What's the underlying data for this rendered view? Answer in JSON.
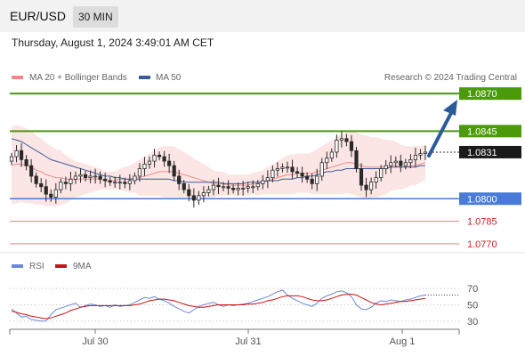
{
  "header": {
    "symbol": "EUR/USD",
    "timeframe": "30 MIN"
  },
  "datetime": "Thursday, August 1, 2024 3:49:01 AM CET",
  "legend": {
    "ma20": {
      "label": "MA 20 + Bollinger Bands",
      "color": "#f08a8a"
    },
    "ma50": {
      "label": "MA 50",
      "color": "#3a5a9a"
    }
  },
  "credit": "Research © 2024 Trading Central",
  "rsi_legend": {
    "rsi": {
      "label": "RSI",
      "color": "#6a8ad8"
    },
    "ma9": {
      "label": "9MA",
      "color": "#cc1111"
    }
  },
  "colors": {
    "resistance": "#4a9a0a",
    "support_main": "#4a7ad8",
    "support": "#e88080",
    "last": "#1a1a1a",
    "up": "#2a2a2a",
    "down": "#2a2a2a",
    "arrow": "#2a5a9a"
  },
  "chart_data": [
    {
      "type": "candlestick",
      "y_range": [
        1.0764,
        1.0876
      ],
      "x_labels": [
        "Jul 30",
        "Jul 31",
        "Aug 1"
      ],
      "levels": [
        {
          "value": 1.087,
          "label": "1.0870",
          "kind": "resistance"
        },
        {
          "value": 1.0845,
          "label": "1.0845",
          "kind": "resistance"
        },
        {
          "value": 1.0831,
          "label": "1.0831",
          "kind": "last"
        },
        {
          "value": 1.08,
          "label": "1.0800",
          "kind": "support_main"
        },
        {
          "value": 1.0785,
          "label": "1.0785",
          "kind": "support"
        },
        {
          "value": 1.077,
          "label": "1.0770",
          "kind": "support"
        }
      ],
      "closes": [
        1.0828,
        1.0832,
        1.0826,
        1.0822,
        1.0815,
        1.081,
        1.0808,
        1.0803,
        1.0801,
        1.0806,
        1.0811,
        1.081,
        1.0813,
        1.0815,
        1.0816,
        1.0814,
        1.0815,
        1.0815,
        1.0813,
        1.0812,
        1.0811,
        1.0811,
        1.0811,
        1.081,
        1.0812,
        1.0815,
        1.082,
        1.0823,
        1.0825,
        1.0829,
        1.0828,
        1.0825,
        1.0822,
        1.0815,
        1.081,
        1.0806,
        1.0802,
        1.0799,
        1.0802,
        1.0804,
        1.0806,
        1.0809,
        1.0808,
        1.0808,
        1.0807,
        1.0806,
        1.0807,
        1.0807,
        1.0808,
        1.0808,
        1.081,
        1.0812,
        1.0814,
        1.0819,
        1.082,
        1.0821,
        1.0821,
        1.0818,
        1.0817,
        1.0815,
        1.0813,
        1.081,
        1.0815,
        1.0824,
        1.0827,
        1.0831,
        1.0839,
        1.084,
        1.0838,
        1.0832,
        1.082,
        1.0809,
        1.0806,
        1.0811,
        1.0814,
        1.082,
        1.0822,
        1.0824,
        1.0825,
        1.0822,
        1.0824,
        1.0826,
        1.0829,
        1.083,
        1.0831
      ],
      "ma20": [
        1.0822,
        1.0823,
        1.0823,
        1.0822,
        1.0821,
        1.0819,
        1.0818,
        1.0816,
        1.0815,
        1.0814,
        1.0814,
        1.0813,
        1.0813,
        1.0813,
        1.0813,
        1.0813,
        1.0813,
        1.0813,
        1.0813,
        1.0812,
        1.0812,
        1.0812,
        1.0813,
        1.0813,
        1.0813,
        1.0814,
        1.0814,
        1.0815,
        1.0816,
        1.0817,
        1.0818,
        1.0818,
        1.0818,
        1.0818,
        1.0817,
        1.0816,
        1.0815,
        1.0814,
        1.0813,
        1.0812,
        1.0811,
        1.081,
        1.081,
        1.081,
        1.0809,
        1.0809,
        1.0809,
        1.0809,
        1.0809,
        1.081,
        1.081,
        1.0811,
        1.0812,
        1.0813,
        1.0814,
        1.0815,
        1.0816,
        1.0816,
        1.0817,
        1.0817,
        1.0817,
        1.0817,
        1.0818,
        1.0819,
        1.082,
        1.0821,
        1.0822,
        1.0823,
        1.0824,
        1.0824,
        1.0823,
        1.0822,
        1.0821,
        1.0821,
        1.0821,
        1.0821,
        1.0821,
        1.0822,
        1.0822,
        1.0821,
        1.0821,
        1.0822,
        1.0822,
        1.0823,
        1.0824
      ],
      "ma50": [
        1.084,
        1.0839,
        1.0838,
        1.0836,
        1.0834,
        1.0832,
        1.083,
        1.0828,
        1.0826,
        1.0825,
        1.0824,
        1.0823,
        1.0822,
        1.0821,
        1.082,
        1.0819,
        1.0818,
        1.0817,
        1.0816,
        1.0815,
        1.0815,
        1.0814,
        1.0814,
        1.0813,
        1.0813,
        1.0813,
        1.0813,
        1.0813,
        1.0813,
        1.0813,
        1.0813,
        1.0813,
        1.0813,
        1.0812,
        1.0812,
        1.0811,
        1.0811,
        1.0811,
        1.0811,
        1.0811,
        1.0811,
        1.0811,
        1.0811,
        1.081,
        1.081,
        1.081,
        1.081,
        1.081,
        1.0811,
        1.0811,
        1.0811,
        1.0811,
        1.0812,
        1.0812,
        1.0812,
        1.0813,
        1.0813,
        1.0813,
        1.0814,
        1.0814,
        1.0815,
        1.0815,
        1.0816,
        1.0817,
        1.0818,
        1.0818,
        1.0819,
        1.0819,
        1.082,
        1.082,
        1.082,
        1.082,
        1.082,
        1.082,
        1.082,
        1.082,
        1.082,
        1.0821,
        1.0821,
        1.0821,
        1.0821,
        1.0821,
        1.0821,
        1.0822,
        1.0822
      ],
      "bb_half_width": [
        0.0026,
        0.0026,
        0.0025,
        0.0025,
        0.0024,
        0.0023,
        0.0022,
        0.0021,
        0.002,
        0.0019,
        0.0018,
        0.0016,
        0.0014,
        0.0012,
        0.0011,
        0.001,
        0.0009,
        0.0008,
        0.0007,
        0.0006,
        0.0006,
        0.0006,
        0.0007,
        0.0008,
        0.0009,
        0.001,
        0.0012,
        0.0013,
        0.0014,
        0.0015,
        0.0016,
        0.0017,
        0.0017,
        0.0017,
        0.0016,
        0.0015,
        0.0014,
        0.0013,
        0.0012,
        0.0011,
        0.001,
        0.0009,
        0.0008,
        0.0008,
        0.0007,
        0.0007,
        0.0007,
        0.0007,
        0.0007,
        0.0007,
        0.0008,
        0.0008,
        0.0009,
        0.001,
        0.0011,
        0.0012,
        0.0013,
        0.0013,
        0.0013,
        0.0013,
        0.0013,
        0.0014,
        0.0015,
        0.0016,
        0.0017,
        0.0018,
        0.0019,
        0.002,
        0.002,
        0.0021,
        0.0021,
        0.0021,
        0.0021,
        0.002,
        0.002,
        0.0019,
        0.0018,
        0.0017,
        0.0016,
        0.0015,
        0.0014,
        0.0013,
        0.0013,
        0.0012,
        0.0012
      ]
    },
    {
      "type": "line",
      "name": "RSI",
      "y_range": [
        20,
        80
      ],
      "y_ticks": [
        70,
        50,
        30
      ],
      "rsi": [
        45,
        40,
        35,
        36,
        32,
        31,
        30,
        30,
        38,
        44,
        46,
        48,
        50,
        52,
        47,
        49,
        51,
        50,
        48,
        49,
        47,
        50,
        48,
        49,
        50,
        53,
        56,
        59,
        58,
        60,
        57,
        55,
        52,
        48,
        45,
        42,
        40,
        44,
        48,
        50,
        52,
        53,
        50,
        48,
        50,
        49,
        50,
        51,
        52,
        54,
        56,
        58,
        60,
        63,
        66,
        68,
        62,
        58,
        55,
        52,
        50,
        48,
        52,
        58,
        61,
        63,
        66,
        67,
        65,
        60,
        50,
        45,
        44,
        47,
        52,
        55,
        54,
        56,
        55,
        54,
        56,
        57,
        59,
        61,
        62
      ],
      "ma9": [
        42,
        41,
        39,
        38,
        36,
        35,
        34,
        33,
        34,
        36,
        38,
        40,
        43,
        45,
        47,
        48,
        49,
        49,
        49,
        49,
        49,
        49,
        49,
        49,
        49,
        50,
        51,
        53,
        55,
        56,
        57,
        57,
        56,
        55,
        53,
        51,
        49,
        48,
        47,
        47,
        48,
        49,
        50,
        50,
        50,
        50,
        50,
        50,
        51,
        51,
        52,
        53,
        55,
        56,
        58,
        60,
        61,
        61,
        61,
        60,
        58,
        56,
        55,
        55,
        56,
        58,
        60,
        62,
        63,
        63,
        62,
        59,
        56,
        53,
        51,
        50,
        51,
        52,
        53,
        54,
        54,
        55,
        56,
        57,
        58
      ]
    }
  ]
}
